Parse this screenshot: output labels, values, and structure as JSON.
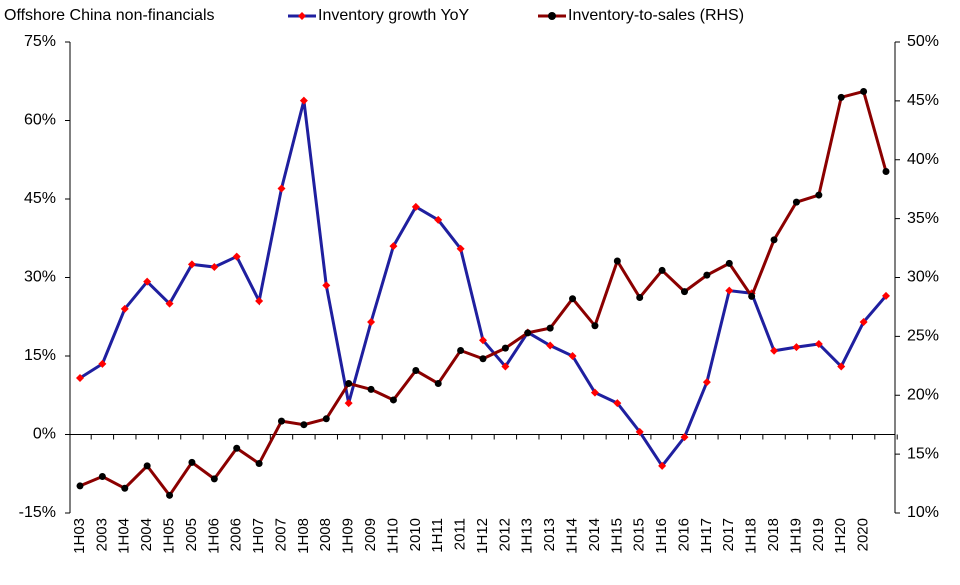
{
  "chart_data": {
    "type": "line",
    "title": "Offshore China non-financials",
    "categories": [
      "1H03",
      "2003",
      "1H04",
      "2004",
      "1H05",
      "2005",
      "1H06",
      "2006",
      "1H07",
      "2007",
      "1H08",
      "2008",
      "1H09",
      "2009",
      "1H10",
      "2010",
      "1H11",
      "2011",
      "1H12",
      "2012",
      "1H13",
      "2013",
      "1H14",
      "2014",
      "1H15",
      "2015",
      "1H16",
      "2016",
      "1H17",
      "2017",
      "1H18",
      "2018",
      "1H19",
      "2019",
      "1H20",
      "2020",
      null
    ],
    "series": [
      {
        "name": "Inventory growth YoY",
        "color": "#1f1f9f",
        "marker_color": "#ff0000",
        "values": [
          10.8,
          13.5,
          24,
          29.2,
          25,
          32.5,
          32,
          34,
          25.5,
          47,
          63.8,
          28.5,
          6,
          21.5,
          36,
          43.5,
          41,
          35.5,
          18,
          13,
          19.5,
          17,
          15,
          8,
          6,
          0.5,
          -6,
          -0.5,
          10,
          27.5,
          27,
          16,
          16.7,
          17.3,
          13,
          21.5,
          26.5
        ]
      },
      {
        "name": "Inventory-to-sales (RHS)",
        "color": "#8b0000",
        "marker_color": "#000000",
        "axis": "y2",
        "values": [
          12.3,
          13.1,
          12.1,
          14.0,
          11.5,
          14.3,
          12.9,
          15.5,
          14.2,
          17.8,
          17.5,
          18.0,
          21.0,
          20.5,
          19.6,
          22.1,
          21.0,
          23.8,
          23.1,
          24.0,
          25.3,
          25.7,
          28.2,
          25.9,
          31.4,
          28.3,
          30.6,
          28.8,
          30.2,
          31.2,
          28.4,
          33.2,
          36.4,
          37.0,
          45.3,
          45.8,
          39.0
        ]
      }
    ],
    "ylim": [
      -15,
      75
    ],
    "yticks": [
      {
        "value": -15,
        "label": "-15%"
      },
      {
        "value": 0,
        "label": "0%"
      },
      {
        "value": 15,
        "label": "15%"
      },
      {
        "value": 30,
        "label": "30%"
      },
      {
        "value": 45,
        "label": "45%"
      },
      {
        "value": 60,
        "label": "60%"
      },
      {
        "value": 75,
        "label": "75%"
      }
    ],
    "y2lim": [
      10,
      50
    ],
    "y2ticks": [
      {
        "value": 10,
        "label": "10%"
      },
      {
        "value": 15,
        "label": "15%"
      },
      {
        "value": 20,
        "label": "20%"
      },
      {
        "value": 25,
        "label": "25%"
      },
      {
        "value": 30,
        "label": "30%"
      },
      {
        "value": 35,
        "label": "35%"
      },
      {
        "value": 40,
        "label": "40%"
      },
      {
        "value": 45,
        "label": "45%"
      },
      {
        "value": 50,
        "label": "50%"
      }
    ],
    "grid": false,
    "legend": "top"
  }
}
